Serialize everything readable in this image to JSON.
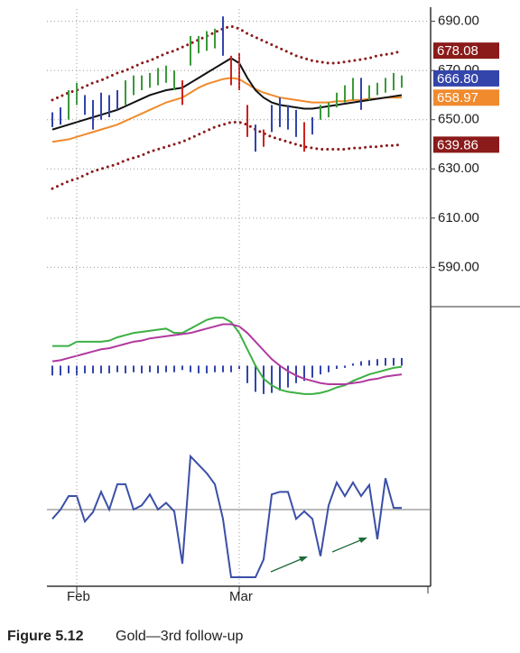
{
  "chart_data": [
    {
      "type": "ohlc",
      "high": [
        653,
        655,
        662,
        665,
        660,
        658,
        661,
        660,
        662,
        666,
        668,
        668,
        669,
        671,
        672,
        670,
        666,
        684,
        684,
        686,
        687,
        692,
        676,
        677,
        656,
        648,
        646,
        656,
        659,
        656,
        654,
        649,
        651,
        656,
        657,
        661,
        664,
        667,
        667,
        664,
        665,
        667,
        669,
        668
      ],
      "low": [
        647,
        648,
        650,
        656,
        652,
        646,
        650,
        651,
        654,
        656,
        660,
        662,
        663,
        664,
        665,
        662,
        656,
        672,
        677,
        678,
        679,
        676,
        664,
        662,
        643,
        637,
        639,
        645,
        647,
        646,
        643,
        637,
        644,
        650,
        651,
        655,
        657,
        658,
        654,
        658,
        660,
        661,
        662,
        663
      ],
      "bar_colors": [
        "#3344aa",
        "#3344aa",
        "#3a9a3a",
        "#3a9a3a",
        "#3344aa",
        "#3344aa",
        "#3344aa",
        "#3344aa",
        "#3344aa",
        "#3a9a3a",
        "#3a9a3a",
        "#3a9a3a",
        "#3a9a3a",
        "#3a9a3a",
        "#3a9a3a",
        "#3a9a3a",
        "#cc2222",
        "#3a9a3a",
        "#3a9a3a",
        "#3a9a3a",
        "#3a9a3a",
        "#3344aa",
        "#cc2222",
        "#cc2222",
        "#cc2222",
        "#3344aa",
        "#cc2222",
        "#3344aa",
        "#3344aa",
        "#3344aa",
        "#3344aa",
        "#cc2222",
        "#3344aa",
        "#3a9a3a",
        "#3a9a3a",
        "#3a9a3a",
        "#3a9a3a",
        "#3a9a3a",
        "#3344aa",
        "#3a9a3a",
        "#3a9a3a",
        "#3a9a3a",
        "#3a9a3a",
        "#3a9a3a"
      ],
      "series": [
        {
          "color": "#8b1a1a",
          "style": "dotted",
          "values": [
            658,
            659.5,
            661,
            662,
            663.5,
            665,
            666,
            667.5,
            669,
            670,
            671.5,
            673,
            674,
            675.5,
            677,
            678,
            679.5,
            681,
            682.5,
            684,
            685.5,
            687,
            688,
            687,
            685,
            683.5,
            682,
            680.5,
            679,
            677.5,
            676,
            675,
            674,
            673.5,
            673,
            673,
            673.5,
            674,
            674.5,
            675,
            676,
            676.5,
            677,
            678
          ]
        },
        {
          "color": "#8b1a1a",
          "style": "dotted",
          "values": [
            622,
            623.5,
            625,
            626,
            627.5,
            629,
            630,
            631,
            632,
            633.5,
            634.5,
            635.5,
            637,
            638,
            639,
            640,
            641,
            642.5,
            644,
            645.5,
            647,
            648,
            649,
            649,
            648,
            646,
            644.5,
            643,
            642,
            641,
            640,
            639,
            638.5,
            638,
            638,
            638,
            638,
            638.5,
            638.5,
            639,
            639,
            639.5,
            639.5,
            640
          ]
        },
        {
          "color": "#f08a2c",
          "style": "solid",
          "values": [
            641,
            641.5,
            642,
            643,
            644,
            645,
            646,
            647,
            648,
            649.5,
            651,
            652.5,
            654,
            655.5,
            657,
            658,
            659,
            661,
            663,
            664.5,
            665.5,
            666.5,
            667,
            666.5,
            664.5,
            662.5,
            661,
            660,
            659,
            658.5,
            658,
            657.5,
            657,
            657,
            657,
            657.5,
            657.5,
            658,
            658,
            658.5,
            658.5,
            659,
            659,
            659
          ]
        },
        {
          "color": "#111111",
          "style": "solid",
          "values": [
            646,
            647,
            648,
            649,
            650,
            651,
            652,
            653,
            654,
            655.5,
            657,
            658.5,
            660,
            661,
            662,
            662.5,
            663,
            665,
            667,
            669,
            671,
            673,
            675,
            673,
            667,
            662,
            659,
            657,
            656,
            655.5,
            655,
            654.5,
            654.5,
            655,
            655.5,
            656,
            656.5,
            657,
            657.5,
            658,
            658.5,
            659,
            659.5,
            660
          ]
        }
      ],
      "ylim": [
        574,
        695
      ],
      "yticks": [
        {
          "value": 590,
          "label": "590.00"
        },
        {
          "value": 610,
          "label": "610.00"
        },
        {
          "value": 630,
          "label": "630.00"
        },
        {
          "value": 650,
          "label": "650.00"
        },
        {
          "value": 670,
          "label": "670.00"
        },
        {
          "value": 690,
          "label": "690.00"
        }
      ],
      "grid": true,
      "price_labels": [
        {
          "value": 678.08,
          "label": "678.08",
          "color": "#8b1a1a"
        },
        {
          "value": 666.8,
          "label": "666.80",
          "color": "#3344aa"
        },
        {
          "value": 658.97,
          "label": "658.97",
          "color": "#f08a2c"
        },
        {
          "value": 639.86,
          "label": "639.86",
          "color": "#8b1a1a"
        }
      ]
    },
    {
      "type": "macd",
      "series": [
        {
          "color": "#3cb043",
          "values": [
            1.8,
            1.8,
            1.8,
            2.2,
            2.2,
            2.2,
            2.2,
            2.3,
            2.6,
            2.8,
            3.0,
            3.1,
            3.2,
            3.3,
            3.4,
            3.0,
            3.0,
            3.4,
            3.8,
            4.2,
            4.4,
            4.4,
            4.0,
            3.0,
            1.5,
            0.0,
            -1.2,
            -1.8,
            -2.2,
            -2.4,
            -2.5,
            -2.6,
            -2.6,
            -2.5,
            -2.3,
            -2.0,
            -1.8,
            -1.4,
            -1.1,
            -0.8,
            -0.6,
            -0.4,
            -0.2,
            -0.1
          ]
        },
        {
          "color": "#b03aa0",
          "values": [
            0.4,
            0.5,
            0.7,
            0.9,
            1.1,
            1.3,
            1.5,
            1.6,
            1.8,
            2.0,
            2.2,
            2.3,
            2.5,
            2.6,
            2.7,
            2.8,
            2.9,
            3.0,
            3.2,
            3.4,
            3.6,
            3.8,
            3.8,
            3.6,
            3.0,
            2.2,
            1.4,
            0.6,
            0.0,
            -0.5,
            -0.9,
            -1.2,
            -1.4,
            -1.6,
            -1.7,
            -1.7,
            -1.7,
            -1.6,
            -1.5,
            -1.3,
            -1.2,
            -1.0,
            -0.9,
            -0.8
          ]
        }
      ],
      "histogram": {
        "color": "#3344aa",
        "values": [
          -0.9,
          -0.9,
          -0.7,
          -0.9,
          -0.7,
          -0.7,
          -0.7,
          -0.7,
          -0.6,
          -0.7,
          -0.6,
          -0.7,
          -0.6,
          -0.7,
          -0.6,
          -0.6,
          -0.4,
          -0.6,
          -0.7,
          -0.7,
          -0.6,
          -0.6,
          -0.6,
          -0.3,
          -1.6,
          -2.4,
          -2.6,
          -2.5,
          -2.3,
          -2.0,
          -1.6,
          -1.4,
          -1.1,
          -0.8,
          -0.6,
          -0.3,
          -0.2,
          0.2,
          0.4,
          0.5,
          0.6,
          0.7,
          0.7,
          0.7
        ]
      },
      "ylim": [
        -7,
        5
      ]
    },
    {
      "type": "line",
      "categories": [
        null,
        null,
        null,
        "Feb",
        null,
        null,
        null,
        null,
        null,
        null,
        null,
        null,
        null,
        null,
        null,
        null,
        null,
        null,
        null,
        null,
        null,
        null,
        null,
        "Mar",
        null,
        null,
        null,
        null,
        null,
        null,
        null,
        null,
        null,
        null,
        null,
        null,
        null,
        null,
        null,
        null,
        null,
        null,
        null,
        null
      ],
      "series": [
        {
          "color": "#3b4fa8",
          "values": [
            -11,
            0,
            16,
            16,
            -14,
            -3,
            21,
            0,
            30,
            30,
            0,
            5,
            18,
            0,
            8,
            -2,
            -64,
            63,
            53,
            43,
            30,
            -11,
            -80,
            -80,
            -80,
            -80,
            -59,
            18,
            21,
            21,
            -11,
            -2,
            -11,
            -55,
            5,
            32,
            16,
            32,
            16,
            29,
            -35,
            37,
            2,
            2
          ]
        }
      ],
      "hline": 0,
      "ylim": [
        -80,
        80
      ]
    }
  ],
  "caption": {
    "number": "Figure 5.12",
    "title": "Gold—3rd follow-up"
  }
}
